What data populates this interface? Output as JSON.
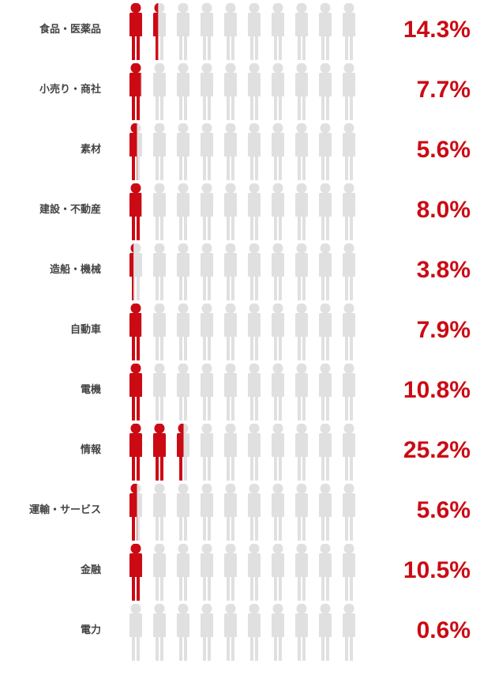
{
  "chart_data": {
    "type": "pictogram",
    "icons_per_row": 10,
    "percent_per_icon": 10,
    "categories": [
      "食品・医薬品",
      "小売り・商社",
      "素材",
      "建設・不動産",
      "造船・機械",
      "自動車",
      "電機",
      "情報",
      "運輸・サービス",
      "金融",
      "電力"
    ],
    "values": [
      14.3,
      7.7,
      5.6,
      8.0,
      3.8,
      7.9,
      10.8,
      25.2,
      5.6,
      10.5,
      0.6
    ],
    "value_labels": [
      "14.3%",
      "7.7%",
      "5.6%",
      "8.0%",
      "3.8%",
      "7.9%",
      "10.8%",
      "25.2%",
      "5.6%",
      "10.5%",
      "0.6%"
    ],
    "colors": {
      "highlight": "#cc0a14",
      "base": "#e0e0e0",
      "label": "#444444"
    }
  }
}
